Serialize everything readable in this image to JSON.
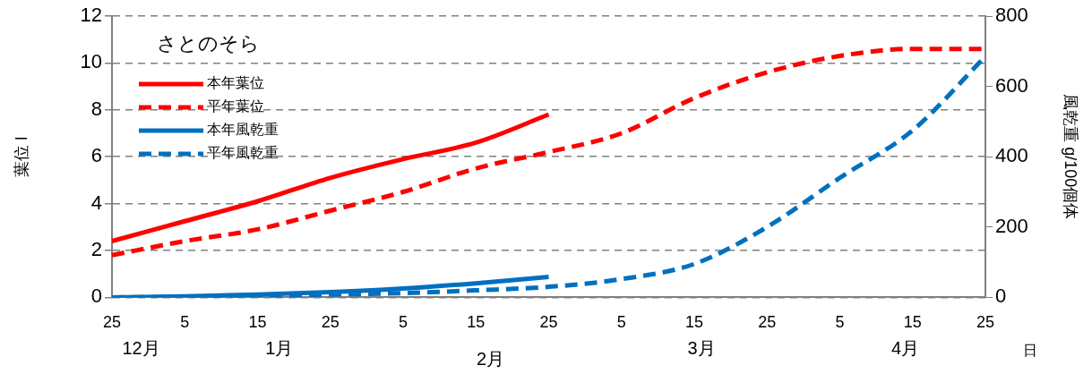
{
  "chart_data": {
    "type": "line",
    "legend_title": "さとのそら",
    "ylabel": "葉位 l",
    "y2label": "風乾重 g/100個体",
    "xlabel": "日",
    "categories": [
      "25",
      "5",
      "15",
      "25",
      "5",
      "15",
      "25",
      "5",
      "15",
      "25",
      "5",
      "15",
      "25"
    ],
    "series": [
      {
        "name": "本年葉位",
        "color": "#ff0000",
        "line_style": "solid",
        "values": [
          2.4,
          3.25,
          4.1,
          5.1,
          5.9,
          6.6,
          7.8,
          null,
          null,
          null,
          null,
          null,
          null
        ]
      },
      {
        "name": "平年葉位",
        "color": "#ff0000",
        "line_style": "dashed",
        "values": [
          1.8,
          2.4,
          2.9,
          3.7,
          4.5,
          5.5,
          6.2,
          7.0,
          8.5,
          9.6,
          10.3,
          10.6,
          10.6
        ]
      },
      {
        "name": "本年風乾重",
        "color": "#0070c0",
        "line_style": "solid",
        "axis": "y2",
        "values": [
          0,
          3,
          8,
          15,
          25,
          40,
          58,
          null,
          null,
          null,
          null,
          null,
          null
        ]
      },
      {
        "name": "平年風乾重",
        "color": "#0070c0",
        "line_style": "dashed",
        "axis": "y2",
        "values": [
          0,
          1,
          3,
          8,
          12,
          20,
          30,
          52,
          95,
          200,
          340,
          475,
          685
        ]
      }
    ],
    "ylim": [
      0,
      12
    ],
    "yticks": [
      0,
      2,
      4,
      6,
      8,
      10,
      12
    ],
    "y2lim": [
      0,
      800
    ],
    "y2ticks": [
      0,
      200,
      400,
      600,
      800
    ],
    "grid": "y",
    "legend": "top left",
    "marker": "none",
    "annotations": [
      "12月",
      "1月",
      "2月",
      "3月",
      "4月"
    ]
  }
}
